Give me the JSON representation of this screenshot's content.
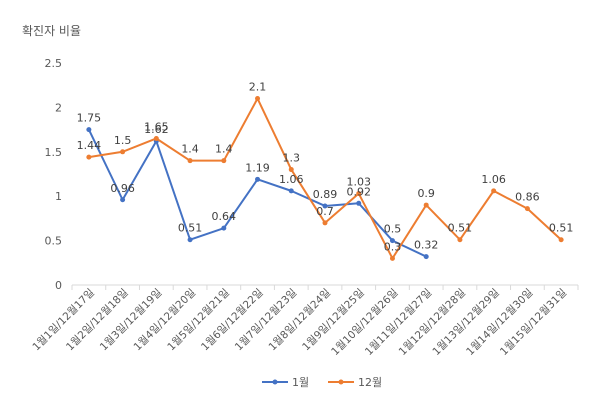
{
  "chart_data": {
    "type": "line",
    "title": "확진자 비율",
    "xlabel": "",
    "ylabel": "",
    "ylim": [
      0,
      2.5
    ],
    "yticks": [
      0,
      0.5,
      1,
      1.5,
      2,
      2.5
    ],
    "ytick_labels": [
      "0",
      "0.5",
      "1",
      "1.5",
      "2",
      "2.5"
    ],
    "grid": false,
    "legend_position": "bottom",
    "categories": [
      "1월1일/12월17일",
      "1월2일/12월18일",
      "1월3일/12월19일",
      "1월4일/12월20일",
      "1월5일/12월21일",
      "1월6일/12월22일",
      "1월7일/12월23일",
      "1월8일/12월24일",
      "1월9일/12월25일",
      "1월10일/12월26일",
      "1월11일/12월27일",
      "1월12일/12월28일",
      "1월13일/12월29일",
      "1월14일/12월30일",
      "1월15일/12월31일"
    ],
    "series": [
      {
        "name": "1월",
        "color": "#4472C4",
        "values": [
          1.75,
          0.96,
          1.62,
          0.51,
          0.64,
          1.19,
          1.06,
          0.89,
          0.92,
          0.5,
          0.32,
          null,
          null,
          null,
          null
        ],
        "labels": [
          "1.75",
          "0.96",
          "1.62",
          "0.51",
          "0.64",
          "1.19",
          "1.06",
          "0.89",
          "0.92",
          "0.5",
          "0.32",
          "",
          "",
          "",
          ""
        ]
      },
      {
        "name": "12월",
        "color": "#ED7D31",
        "values": [
          1.44,
          1.5,
          1.65,
          1.4,
          1.4,
          2.1,
          1.3,
          0.7,
          1.03,
          0.3,
          0.9,
          0.51,
          1.06,
          0.86,
          0.51
        ],
        "labels": [
          "1.44",
          "1.5",
          "1.65",
          "1.4",
          "1.4",
          "2.1",
          "1.3",
          "0.7",
          "1.03",
          "0.3",
          "0.9",
          "0.51",
          "1.06",
          "0.86",
          "0.51"
        ]
      }
    ]
  }
}
